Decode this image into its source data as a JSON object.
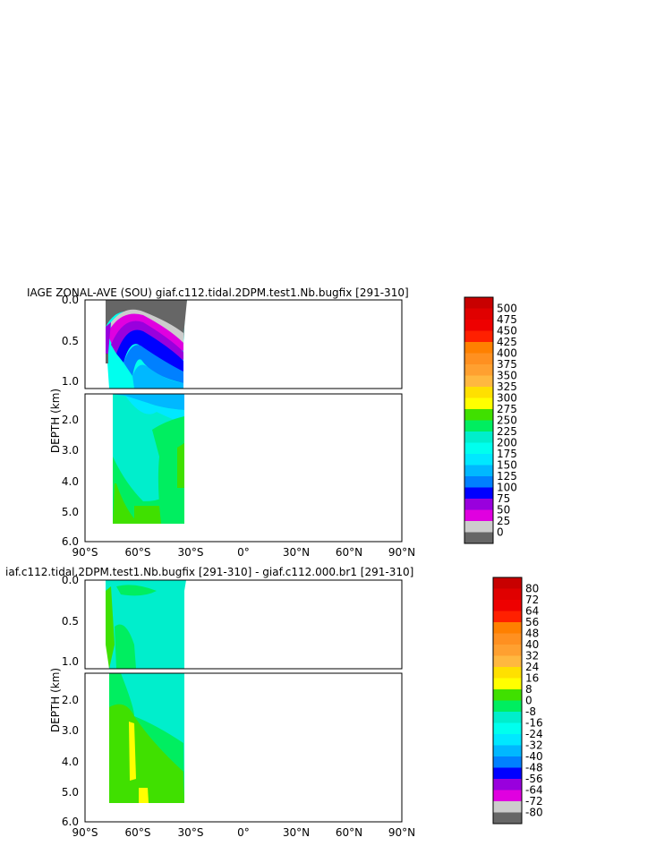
{
  "chart_data": [
    {
      "type": "heatmap",
      "title": "IAGE ZONAL-AVE (SOU) giaf.c112.tidal.2DPM.test1.Nb.bugfix [291-310]",
      "ylabel": "DEPTH (km)",
      "x_ticks": [
        "90°S",
        "60°S",
        "30°S",
        "0°",
        "30°N",
        "60°N",
        "90°N"
      ],
      "y_ticks_upper": [
        "0.0",
        "0.5",
        "1.0"
      ],
      "y_ticks_lower": [
        "2.0",
        "3.0",
        "4.0",
        "5.0",
        "6.0"
      ],
      "xlim": [
        -90,
        90
      ],
      "ylim": [
        0,
        6
      ],
      "colorbar": {
        "labels": [
          "500",
          "475",
          "450",
          "425",
          "400",
          "375",
          "350",
          "325",
          "300",
          "275",
          "250",
          "225",
          "200",
          "175",
          "150",
          "125",
          "100",
          "75",
          "50",
          "25",
          "0"
        ],
        "colors": [
          "#c80000",
          "#e00000",
          "#ee0000",
          "#ff2000",
          "#ff8000",
          "#ff9020",
          "#ffa030",
          "#ffb840",
          "#ffe000",
          "#ffff00",
          "#40e000",
          "#00ee60",
          "#00eecc",
          "#00ffee",
          "#00e8ff",
          "#00b8ff",
          "#0080ff",
          "#0000ff",
          "#9900dd",
          "#e000e0",
          "#cccccc",
          "#666666"
        ]
      }
    },
    {
      "type": "heatmap",
      "title": "iaf.c112.tidal.2DPM.test1.Nb.bugfix [291-310] - giaf.c112.000.br1 [291-310]",
      "ylabel": "DEPTH (km)",
      "x_ticks": [
        "90°S",
        "60°S",
        "30°S",
        "0°",
        "30°N",
        "60°N",
        "90°N"
      ],
      "y_ticks_upper": [
        "0.0",
        "0.5",
        "1.0"
      ],
      "y_ticks_lower": [
        "2.0",
        "3.0",
        "4.0",
        "5.0",
        "6.0"
      ],
      "xlim": [
        -90,
        90
      ],
      "ylim": [
        0,
        6
      ],
      "colorbar": {
        "labels": [
          "80",
          "72",
          "64",
          "56",
          "48",
          "40",
          "32",
          "24",
          "16",
          "8",
          "0",
          "-8",
          "-16",
          "-24",
          "-32",
          "-40",
          "-48",
          "-56",
          "-64",
          "-72",
          "-80"
        ],
        "colors": [
          "#c80000",
          "#e00000",
          "#ee0000",
          "#ff2000",
          "#ff8000",
          "#ff9020",
          "#ffa030",
          "#ffb840",
          "#ffe000",
          "#ffff00",
          "#40e000",
          "#00ee60",
          "#00eecc",
          "#00ffee",
          "#00e8ff",
          "#00b8ff",
          "#0080ff",
          "#0000ff",
          "#9900dd",
          "#e000e0",
          "#cccccc",
          "#666666"
        ]
      }
    }
  ]
}
